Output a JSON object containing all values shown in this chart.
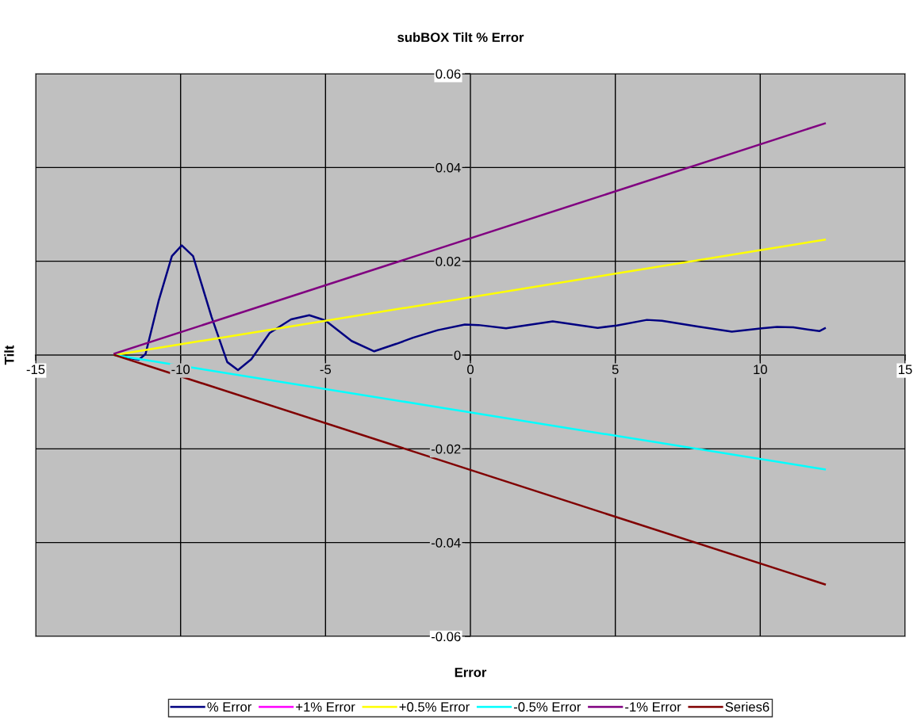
{
  "chart_data": {
    "type": "line",
    "title": "subBOX Tilt % Error",
    "xlabel": "Error",
    "ylabel": "Tilt",
    "xlim": [
      -15,
      15
    ],
    "xticks": [
      -15,
      -10,
      -5,
      0,
      5,
      10,
      15
    ],
    "ylim": [
      -0.06,
      0.06
    ],
    "yticks": [
      -0.06,
      -0.04,
      -0.02,
      0,
      0.02,
      0.04,
      0.06
    ],
    "grid": true,
    "legend": "bottom",
    "marker": "none",
    "line_style": "solid",
    "series": [
      {
        "name": "% Error",
        "color": "#000080",
        "x": [
          -12.28,
          -11.44,
          -11.21,
          -10.76,
          -10.3,
          -9.96,
          -9.57,
          -8.93,
          -8.39,
          -8.02,
          -7.56,
          -6.93,
          -6.19,
          -5.56,
          -5.01,
          -4.1,
          -3.32,
          -2.55,
          -1.98,
          -1.13,
          -0.19,
          0.28,
          1.23,
          2.84,
          4.39,
          5.05,
          6.09,
          6.61,
          7.84,
          9.02,
          10.06,
          10.58,
          11.14,
          12.04,
          12.23
        ],
        "values": [
          0,
          -0.001,
          0.0002,
          0.0115,
          0.0211,
          0.0234,
          0.0211,
          0.0081,
          -0.0015,
          -0.0032,
          -0.0009,
          0.0047,
          0.0076,
          0.0085,
          0.0074,
          0.003,
          0.0008,
          0.0024,
          0.0037,
          0.0053,
          0.0065,
          0.0064,
          0.0057,
          0.0072,
          0.0058,
          0.0063,
          0.0075,
          0.0073,
          0.0061,
          0.005,
          0.0057,
          0.006,
          0.0059,
          0.0051,
          0.0057
        ]
      },
      {
        "name": "+1% Error",
        "color": "#ff00ff"
      },
      {
        "name": "+0.5% Error",
        "color": "#ffff00",
        "x": [
          -12.28,
          12.23
        ],
        "values": [
          0,
          0.0246
        ]
      },
      {
        "name": "-0.5% Error",
        "color": "#00ffff",
        "x": [
          -12.28,
          12.23
        ],
        "values": [
          0,
          -0.0244
        ]
      },
      {
        "name": "-1% Error",
        "color": "#800080",
        "x": [
          -12.28,
          12.23
        ],
        "values": [
          0.0003,
          0.0494
        ]
      },
      {
        "name": "Series6",
        "color": "#800000",
        "x": [
          -12.28,
          12.23
        ],
        "values": [
          0,
          -0.0489
        ]
      }
    ]
  }
}
